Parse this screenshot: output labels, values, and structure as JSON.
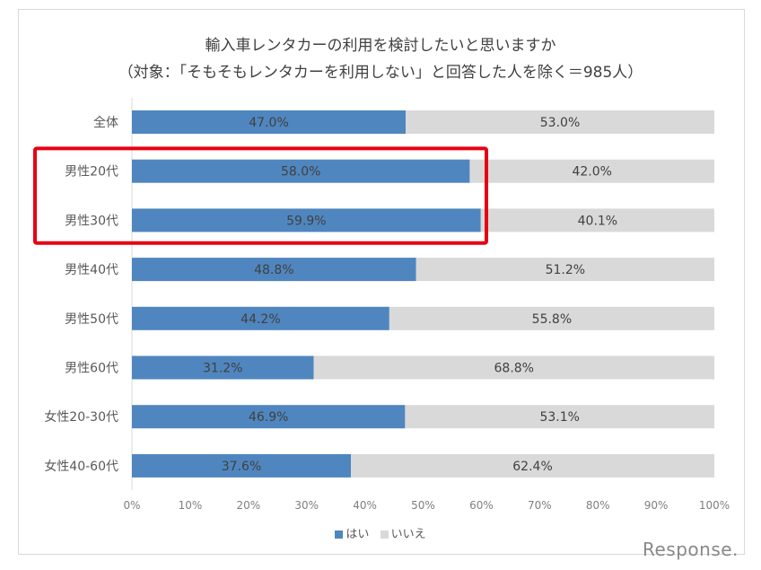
{
  "chart_data": {
    "type": "bar",
    "orientation": "horizontal",
    "stacked": true,
    "title": "輸入車レンタカーの利用を検討したいと思いますか",
    "subtitle": "（対象：「そもそもレンタカーを利用しない」と回答した人を除く＝985人）",
    "categories": [
      "全体",
      "男性20代",
      "男性30代",
      "男性40代",
      "男性50代",
      "男性60代",
      "女性20-30代",
      "女性40-60代"
    ],
    "series": [
      {
        "name": "はい",
        "values": [
          47.0,
          58.0,
          59.9,
          48.8,
          44.2,
          31.2,
          46.9,
          37.6
        ],
        "color": "#4f86bf"
      },
      {
        "name": "いいえ",
        "values": [
          53.0,
          42.0,
          40.1,
          51.2,
          55.8,
          68.8,
          53.1,
          62.4
        ],
        "color": "#d9d9d9"
      }
    ],
    "data_labels": [
      [
        "47.0%",
        "58.0%",
        "59.9%",
        "48.8%",
        "44.2%",
        "31.2%",
        "46.9%",
        "37.6%"
      ],
      [
        "53.0%",
        "42.0%",
        "40.1%",
        "51.2%",
        "55.8%",
        "68.8%",
        "53.1%",
        "62.4%"
      ]
    ],
    "x_ticks": [
      "0%",
      "10%",
      "20%",
      "30%",
      "40%",
      "50%",
      "60%",
      "70%",
      "80%",
      "90%",
      "100%"
    ],
    "xlim": [
      0,
      100
    ],
    "legend_position": "bottom",
    "highlight": {
      "categories": [
        "男性20代",
        "男性30代"
      ],
      "color": "#e60012"
    }
  },
  "watermark": "Response."
}
